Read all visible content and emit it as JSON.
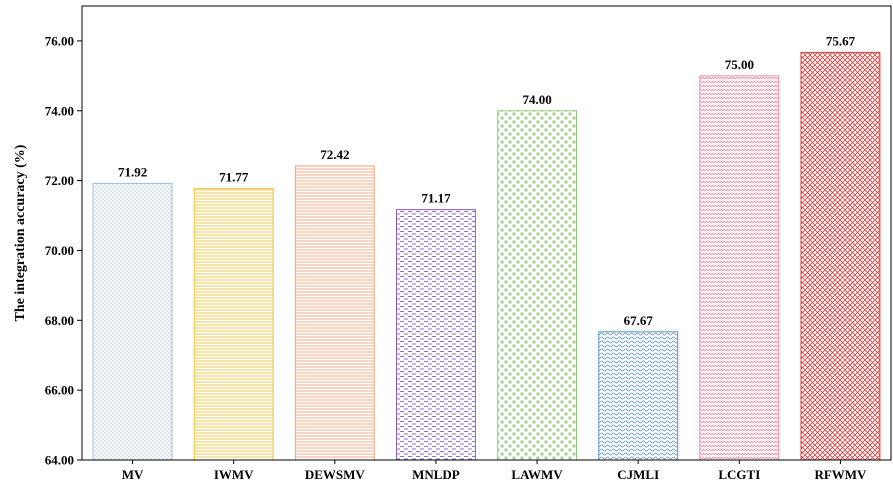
{
  "chart_data": {
    "type": "bar",
    "title": "",
    "xlabel": "",
    "ylabel": "The integration accuracy (%)",
    "ylim": [
      64,
      77
    ],
    "yticks": [
      "64.00",
      "66.00",
      "68.00",
      "70.00",
      "72.00",
      "74.00",
      "76.00"
    ],
    "grid": false,
    "categories": [
      "MV",
      "IWMV",
      "DEWSMV",
      "MNLDP",
      "LAWMV",
      "CJMLI",
      "LCGTI",
      "RFWMV"
    ],
    "values": [
      71.92,
      71.77,
      72.42,
      71.17,
      74.0,
      67.67,
      75.0,
      75.67
    ],
    "value_labels": [
      "71.92",
      "71.77",
      "72.42",
      "71.17",
      "74.00",
      "67.67",
      "75.00",
      "75.67"
    ],
    "colors": [
      "#9fbde0",
      "#f2c23c",
      "#f2a47a",
      "#8a5cc0",
      "#8dc97a",
      "#5a93c6",
      "#f08cab",
      "#e23b3b"
    ],
    "patterns": [
      "dots",
      "horizontal-lines",
      "horizontal-lines",
      "dashes",
      "weave",
      "waves",
      "zigzag",
      "crosshatch"
    ]
  }
}
